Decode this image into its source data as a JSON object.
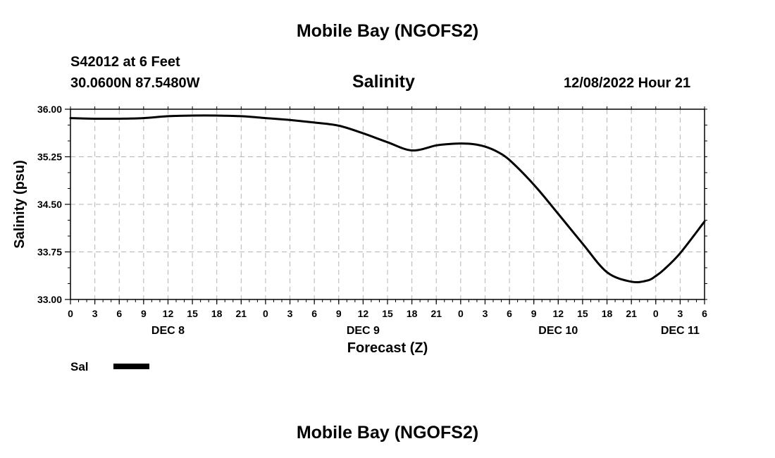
{
  "header": {
    "title": "Mobile Bay (NGOFS2)",
    "station": "S42012 at 6 Feet",
    "coords": "30.0600N  87.5480W",
    "subtitle": "Salinity",
    "datetime": "12/08/2022 Hour 21"
  },
  "footer": {
    "title": "Mobile Bay (NGOFS2)"
  },
  "chart_data": {
    "type": "line",
    "title": "Salinity",
    "xlabel": "Forecast (Z)",
    "ylabel": "Salinity (psu)",
    "ylim": [
      33.0,
      36.0
    ],
    "xlim": [
      0,
      78
    ],
    "x_unit": "hours since DEC 8 00Z",
    "y_ticks": [
      "33.00",
      "33.75",
      "34.50",
      "35.25",
      "36.00"
    ],
    "x_tick_labels": [
      "0",
      "3",
      "6",
      "9",
      "12",
      "15",
      "18",
      "21",
      "0",
      "3",
      "6",
      "9",
      "12",
      "15",
      "18",
      "21",
      "0",
      "3",
      "6",
      "9",
      "12",
      "15",
      "18",
      "21",
      "0",
      "3",
      "6"
    ],
    "day_labels": [
      {
        "text": "DEC 8",
        "hour": 12
      },
      {
        "text": "DEC 9",
        "hour": 36
      },
      {
        "text": "DEC 10",
        "hour": 60
      },
      {
        "text": "DEC 11",
        "hour": 75
      }
    ],
    "grid": true,
    "legend": {
      "placement": "bottom-left",
      "entries": [
        {
          "label": "Sal",
          "color": "#000000"
        }
      ]
    },
    "series": [
      {
        "name": "Sal",
        "color": "#000000",
        "x": [
          0,
          3,
          6,
          9,
          12,
          15,
          18,
          21,
          24,
          27,
          30,
          33,
          36,
          39,
          42,
          45,
          46.5,
          48,
          49.5,
          51,
          52.5,
          54,
          57,
          60,
          63,
          66,
          69,
          71,
          72,
          73,
          75,
          78
        ],
        "y": [
          35.86,
          35.85,
          35.85,
          35.86,
          35.89,
          35.9,
          35.9,
          35.89,
          35.86,
          35.83,
          35.79,
          35.74,
          35.62,
          35.48,
          35.35,
          35.43,
          35.45,
          35.46,
          35.45,
          35.41,
          35.33,
          35.2,
          34.81,
          34.35,
          33.88,
          33.43,
          33.28,
          33.3,
          33.37,
          33.47,
          33.73,
          34.23
        ]
      }
    ]
  }
}
